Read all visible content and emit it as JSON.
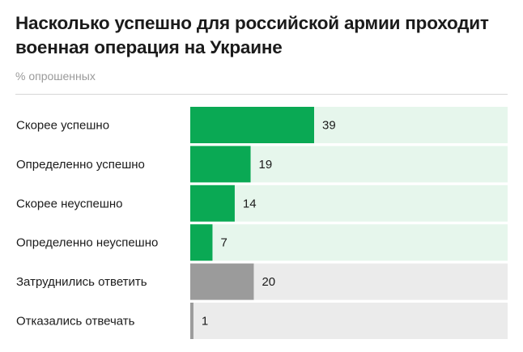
{
  "header": {
    "title": "Насколько успешно для российской армии проходит военная операция на Украине",
    "subtitle": "% опрошенных"
  },
  "chart_data": {
    "type": "bar",
    "orientation": "horizontal",
    "title": "Насколько успешно для российской армии проходит военная операция на Украине",
    "subtitle": "% опрошенных",
    "categories": [
      "Скорее успешно",
      "Определенно успешно",
      "Скорее неуспешно",
      "Определенно неуспешно",
      "Затруднились ответить",
      "Отказались отвечать"
    ],
    "values": [
      39,
      19,
      14,
      7,
      20,
      1
    ],
    "xlim": [
      0,
      100
    ],
    "grid": false,
    "colors": {
      "bar_main": [
        "#0aa954",
        "#0aa954",
        "#0aa954",
        "#0aa954",
        "#9b9b9b",
        "#9b9b9b"
      ],
      "bar_track": [
        "#e6f6ec",
        "#e6f6ec",
        "#e6f6ec",
        "#e6f6ec",
        "#ebebeb",
        "#ebebeb"
      ]
    }
  }
}
